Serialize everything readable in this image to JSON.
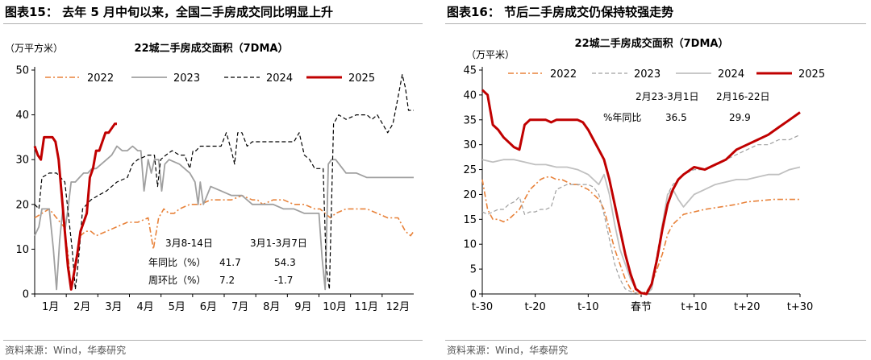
{
  "left": {
    "figure_title": "图表15：  去年 5 月中旬以来，全国二手房成交同比明显上升",
    "source": "资料来源：Wind，华泰研究"
  },
  "right": {
    "figure_title": "图表16：  节后二手房成交仍保持较强走势",
    "source": "资料来源：Wind，华泰研究"
  },
  "colors": {
    "2022": "#e8823a",
    "2023": "#a0a0a0",
    "2024": "#000000",
    "2025": "#c00000",
    "2024_right": "#c0c0c0"
  },
  "chart_data": [
    {
      "type": "line",
      "title": "22城二手房成交面积（7DMA）",
      "ylabel": "（万平方米）",
      "ylim": [
        0,
        50
      ],
      "yticks": [
        "0",
        "10",
        "20",
        "30",
        "40",
        "50"
      ],
      "xticks": [
        "1月",
        "2月",
        "3月",
        "4月",
        "5月",
        "6月",
        "7月",
        "8月",
        "9月",
        "10月",
        "11月",
        "12月"
      ],
      "x_unit": "day of year",
      "xlim": [
        1,
        365
      ],
      "legend": [
        "2022",
        "2023",
        "2024",
        "2025"
      ],
      "legend_position": "top",
      "annotation": {
        "col1": "3月8-14日",
        "col2": "3月1-3月7日",
        "rows": [
          {
            "label": "年同比（%）",
            "v1": "41.7",
            "v2": "54.3"
          },
          {
            "label": "周环比（%）",
            "v1": "7.2",
            "v2": "-1.7"
          }
        ]
      },
      "series": [
        {
          "name": "2022",
          "style": "dashdot",
          "x": [
            1,
            8,
            15,
            22,
            29,
            33,
            36,
            40,
            45,
            50,
            55,
            60,
            70,
            80,
            90,
            100,
            110,
            115,
            120,
            125,
            130,
            135,
            140,
            150,
            160,
            170,
            180,
            190,
            200,
            210,
            215,
            220,
            230,
            240,
            250,
            260,
            270,
            275,
            280,
            285,
            290,
            300,
            310,
            320,
            330,
            340,
            345,
            350,
            357,
            362,
            365
          ],
          "y": [
            17,
            18,
            19,
            17,
            15,
            9,
            1,
            7,
            13,
            14,
            14,
            13,
            14,
            15,
            16,
            16,
            17,
            10,
            17,
            19,
            18,
            18,
            19,
            20,
            20,
            21,
            21,
            21,
            22,
            21,
            21,
            20,
            21,
            21,
            20,
            20,
            19,
            19,
            18,
            17,
            18,
            19,
            19,
            19,
            18,
            17,
            17,
            17,
            14,
            13,
            14
          ]
        },
        {
          "name": "2023",
          "style": "solid",
          "x": [
            1,
            5,
            8,
            12,
            15,
            19,
            22,
            25,
            28,
            30,
            33,
            36,
            40,
            44,
            48,
            52,
            56,
            60,
            65,
            70,
            75,
            80,
            85,
            90,
            95,
            100,
            103,
            106,
            110,
            113,
            116,
            120,
            123,
            126,
            130,
            140,
            150,
            155,
            158,
            160,
            163,
            170,
            180,
            190,
            200,
            210,
            220,
            230,
            240,
            250,
            260,
            270,
            274,
            277,
            280,
            283,
            286,
            290,
            300,
            310,
            320,
            330,
            340,
            350,
            360,
            365
          ],
          "y": [
            13,
            15,
            19,
            19,
            19,
            10,
            1,
            12,
            19,
            14,
            19,
            25,
            25,
            26,
            27,
            27,
            28,
            28,
            29,
            30,
            31,
            33,
            32,
            32,
            33,
            32,
            32,
            23,
            30,
            27,
            30,
            30,
            23,
            29,
            30,
            29,
            27,
            25,
            20,
            25,
            20,
            24,
            23,
            22,
            22,
            20,
            20,
            20,
            19,
            19,
            18,
            18,
            18,
            8,
            1,
            29,
            30,
            30,
            27,
            27,
            26,
            26,
            26,
            26,
            26,
            26
          ]
        },
        {
          "name": "2024",
          "style": "dashed",
          "x": [
            1,
            5,
            8,
            15,
            22,
            30,
            37,
            40,
            42,
            44,
            47,
            55,
            62,
            70,
            80,
            90,
            95,
            100,
            110,
            116,
            119,
            122,
            127,
            133,
            140,
            145,
            150,
            153,
            156,
            160,
            165,
            170,
            175,
            180,
            185,
            190,
            193,
            196,
            200,
            205,
            210,
            220,
            230,
            240,
            250,
            255,
            260,
            265,
            270,
            275,
            278,
            281,
            284,
            288,
            293,
            300,
            310,
            320,
            325,
            330,
            335,
            340,
            345,
            350,
            354,
            357,
            360,
            365
          ],
          "y": [
            20,
            19,
            26,
            27,
            27,
            25,
            10,
            1,
            5,
            10,
            19,
            21,
            22,
            23,
            25,
            26,
            29,
            30,
            31,
            31,
            24,
            30,
            31,
            32,
            31,
            31,
            28,
            32,
            32,
            33,
            33,
            33,
            33,
            33,
            36,
            32,
            29,
            36,
            36,
            33,
            34,
            34,
            34,
            34,
            34,
            36,
            31,
            30,
            28,
            28,
            28,
            6,
            1,
            38,
            40,
            39,
            40,
            40,
            39,
            40,
            38,
            36,
            38,
            44,
            49,
            46,
            41,
            41
          ]
        },
        {
          "name": "2025",
          "style": "bold",
          "x": [
            1,
            4,
            7,
            10,
            12,
            15,
            18,
            21,
            24,
            27,
            30,
            33,
            36,
            39,
            42,
            45,
            48,
            51,
            54,
            57,
            60,
            63,
            66,
            69,
            72,
            75,
            78,
            80
          ],
          "y": [
            33,
            31,
            30,
            35,
            35,
            35,
            35,
            34,
            30,
            22,
            14,
            6,
            1,
            5,
            9,
            14,
            16,
            18,
            26,
            28,
            32,
            32,
            34,
            36,
            36,
            37,
            38,
            38
          ]
        }
      ]
    },
    {
      "type": "line",
      "title": "22城二手房成交面积（7DMA）",
      "ylabel": "（万平米）",
      "ylim": [
        0,
        45
      ],
      "yticks": [
        "0",
        "5",
        "10",
        "15",
        "20",
        "25",
        "30",
        "35",
        "40",
        "45"
      ],
      "xticks": [
        "t-30",
        "t-20",
        "t-10",
        "春节",
        "t+10",
        "t+20",
        "t+30"
      ],
      "x_unit": "days relative to Spring Festival",
      "xlim": [
        -30,
        30
      ],
      "legend": [
        "2022",
        "2023",
        "2024",
        "2025"
      ],
      "legend_position": "top",
      "annotation": {
        "col1": "2月23-3月1日",
        "col2": "2月16-22日",
        "row_label": "%年同比",
        "v1": "36.5",
        "v2": "29.9"
      },
      "series": [
        {
          "name": "2022",
          "style": "dashdot",
          "x": [
            -30,
            -29,
            -28,
            -27,
            -26,
            -25,
            -24,
            -23,
            -22,
            -21,
            -20,
            -19,
            -18,
            -17,
            -16,
            -15,
            -14,
            -13,
            -12,
            -11,
            -10,
            -9,
            -8,
            -7,
            -6,
            -5,
            -4,
            -3,
            -2,
            -1,
            0,
            1,
            2,
            3,
            4,
            5,
            6,
            7,
            8,
            10,
            12,
            15,
            18,
            20,
            25,
            30
          ],
          "y": [
            23,
            17,
            15,
            15,
            14.5,
            15,
            16,
            17,
            19,
            21,
            22,
            23,
            23.5,
            23.5,
            23,
            23,
            22.5,
            22,
            22,
            21.5,
            21,
            20,
            19,
            17,
            13,
            9,
            6,
            3,
            1,
            0.2,
            0,
            0.5,
            2,
            5,
            8,
            12,
            14,
            15,
            16,
            16.5,
            17,
            17.5,
            18,
            18.5,
            19,
            19
          ]
        },
        {
          "name": "2023",
          "style": "dashed",
          "x": [
            -30,
            -29,
            -28,
            -27,
            -26,
            -25,
            -24,
            -23,
            -22,
            -21,
            -20,
            -19,
            -18,
            -17,
            -16,
            -15,
            -14,
            -13,
            -12,
            -11,
            -10,
            -9,
            -8,
            -7,
            -6,
            -5,
            -4,
            -3,
            -2,
            -1,
            0,
            1,
            2,
            3,
            4,
            5,
            6,
            7,
            8,
            10,
            12,
            14,
            16,
            18,
            20,
            22,
            24,
            26,
            28,
            30
          ],
          "y": [
            16.5,
            16,
            16.5,
            17,
            17,
            18,
            18.5,
            19.5,
            16,
            16.5,
            16.5,
            17,
            17,
            17.5,
            21,
            21.5,
            22,
            22,
            22,
            22,
            22,
            21.5,
            20,
            16,
            11,
            6,
            3,
            1,
            0.5,
            0.2,
            0,
            0.5,
            2,
            8,
            14,
            20,
            22,
            23,
            24,
            25,
            25,
            26,
            27,
            28,
            29,
            30,
            30,
            31,
            31,
            32
          ]
        },
        {
          "name": "2024",
          "style": "solid",
          "x": [
            -30,
            -28,
            -26,
            -24,
            -22,
            -20,
            -18,
            -16,
            -14,
            -12,
            -10,
            -9,
            -8,
            -7,
            -6,
            -5,
            -4,
            -3,
            -2,
            -1,
            0,
            1,
            2,
            3,
            4,
            5,
            6,
            7,
            8,
            10,
            12,
            14,
            16,
            18,
            20,
            22,
            24,
            26,
            28,
            30
          ],
          "y": [
            27,
            26.5,
            27,
            27,
            26.5,
            26,
            26,
            25.5,
            25.5,
            25,
            24,
            23,
            22,
            24,
            20,
            14,
            9,
            6,
            3,
            1,
            0.2,
            0,
            1,
            7,
            14,
            20,
            21,
            19,
            17.5,
            20,
            21,
            22,
            22.5,
            23,
            23,
            23.5,
            24,
            24,
            25,
            25.5
          ]
        },
        {
          "name": "2025",
          "style": "bold",
          "x": [
            -30,
            -29,
            -28,
            -27,
            -26,
            -25,
            -24,
            -23,
            -22,
            -21,
            -20,
            -19,
            -18,
            -17,
            -16,
            -15,
            -14,
            -13,
            -12,
            -11,
            -10,
            -9,
            -8,
            -7,
            -6,
            -5,
            -4,
            -3,
            -2,
            -1,
            0,
            1,
            2,
            3,
            4,
            5,
            6,
            7,
            8,
            10,
            12,
            14,
            16,
            18,
            20,
            22,
            24,
            26,
            28,
            30
          ],
          "y": [
            41,
            40,
            34,
            33,
            31.5,
            30.5,
            29.5,
            29,
            34,
            35,
            35,
            35,
            35,
            34.5,
            35,
            35,
            35,
            35,
            35,
            34.5,
            33,
            31,
            29,
            27,
            23,
            18,
            13,
            8,
            4,
            1,
            0.2,
            0,
            2,
            7,
            13,
            18,
            21,
            23,
            24,
            25.5,
            25,
            26,
            27,
            29,
            30,
            31,
            32,
            33.5,
            35,
            36.5
          ]
        }
      ]
    }
  ]
}
